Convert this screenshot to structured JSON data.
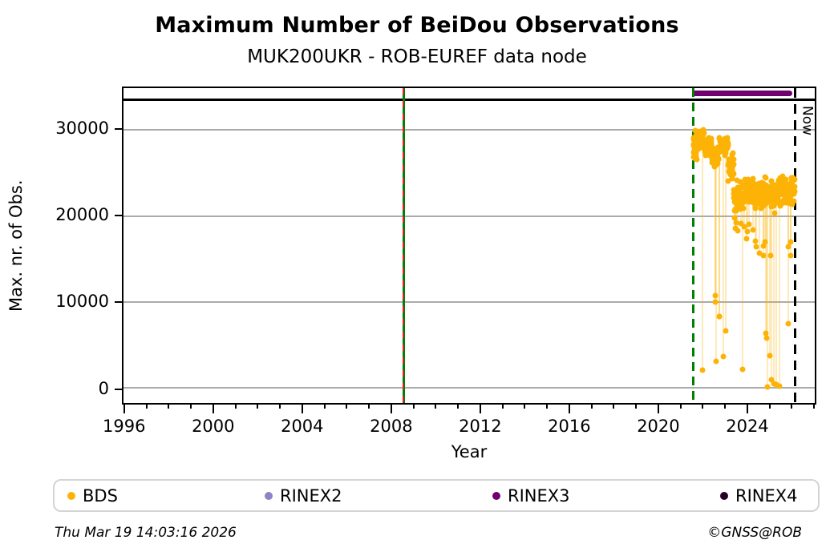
{
  "chart_data": {
    "type": "scatter",
    "title": "Maximum Number of BeiDou Observations",
    "subtitle": "MUK200UKR - ROB-EUREF data node",
    "xlabel": "Year",
    "ylabel": "Max. nr. of Obs.",
    "xlim": [
      1995.9,
      2027.1
    ],
    "ylim": [
      -1800,
      34900
    ],
    "xticks_major": [
      1996,
      2000,
      2004,
      2008,
      2012,
      2016,
      2020,
      2024
    ],
    "xticks_minor_step": 1,
    "yticks": [
      0,
      10000,
      20000,
      30000
    ],
    "grid": "horizontal-only",
    "grid_color": "#ababab",
    "series": [
      {
        "name": "BDS",
        "color": "#FCB306",
        "marker": "circle"
      }
    ],
    "band_segments": [
      {
        "x0": 2021.62,
        "x1": 2021.78,
        "lo": 26000,
        "hi": 30300,
        "n": 30
      },
      {
        "x0": 2021.78,
        "x1": 2022.1,
        "lo": 27400,
        "hi": 30400,
        "n": 48
      },
      {
        "x0": 2022.1,
        "x1": 2022.45,
        "lo": 26800,
        "hi": 29300,
        "n": 48
      },
      {
        "x0": 2022.45,
        "x1": 2022.78,
        "lo": 25600,
        "hi": 28300,
        "n": 42
      },
      {
        "x0": 2022.78,
        "x1": 2023.2,
        "lo": 26800,
        "hi": 29600,
        "n": 56
      },
      {
        "x0": 2023.2,
        "x1": 2023.45,
        "lo": 23500,
        "hi": 27500,
        "n": 30
      },
      {
        "x0": 2023.45,
        "x1": 2023.9,
        "lo": 20400,
        "hi": 24300,
        "n": 62
      },
      {
        "x0": 2023.9,
        "x1": 2024.6,
        "lo": 20800,
        "hi": 24800,
        "n": 92
      },
      {
        "x0": 2024.6,
        "x1": 2025.3,
        "lo": 20300,
        "hi": 24600,
        "n": 92
      },
      {
        "x0": 2025.3,
        "x1": 2026.2,
        "lo": 21000,
        "hi": 24900,
        "n": 115
      }
    ],
    "outliers": [
      [
        2022.03,
        2050
      ],
      [
        2022.6,
        10700
      ],
      [
        2022.61,
        10000
      ],
      [
        2022.63,
        3050
      ],
      [
        2022.78,
        8300
      ],
      [
        2022.81,
        8250
      ],
      [
        2022.99,
        3630
      ],
      [
        2023.07,
        6600
      ],
      [
        2023.47,
        19800
      ],
      [
        2023.5,
        18600
      ],
      [
        2023.56,
        19200
      ],
      [
        2023.62,
        18300
      ],
      [
        2023.76,
        19100
      ],
      [
        2023.83,
        2150
      ],
      [
        2023.92,
        18700
      ],
      [
        2024.02,
        17300
      ],
      [
        2024.06,
        18200
      ],
      [
        2024.12,
        19000
      ],
      [
        2024.3,
        18400
      ],
      [
        2024.42,
        17100
      ],
      [
        2024.47,
        16400
      ],
      [
        2024.62,
        15700
      ],
      [
        2024.77,
        16500
      ],
      [
        2024.8,
        15350
      ],
      [
        2024.86,
        17000
      ],
      [
        2024.9,
        6300
      ],
      [
        2024.93,
        5750
      ],
      [
        2024.95,
        90
      ],
      [
        2025.06,
        3720
      ],
      [
        2025.1,
        15350
      ],
      [
        2025.13,
        900
      ],
      [
        2025.27,
        450
      ],
      [
        2025.35,
        370
      ],
      [
        2025.5,
        200
      ],
      [
        2025.9,
        16400
      ],
      [
        2025.92,
        7440
      ],
      [
        2026.0,
        17000
      ],
      [
        2026.02,
        15400
      ]
    ],
    "stems": {
      "threshold": 20000,
      "split_year": 2023.45,
      "top_early": 27500,
      "top_late": 22800,
      "color": "rgba(252,179,6,0.28)"
    },
    "events": [
      {
        "year": 2008.55,
        "style": "green-solid-red-dash",
        "colors": [
          "#008000",
          "#DD2222"
        ]
      },
      {
        "year": 2021.6,
        "style": "green-dash",
        "colors": [
          "#008000"
        ]
      },
      {
        "year": 2026.21,
        "style": "black-dash",
        "colors": [
          "#000000"
        ],
        "label": "Now"
      }
    ],
    "now_label": "Now",
    "availability_bars": [
      {
        "name": "RINEX3",
        "start": 2021.55,
        "end": 2026.1,
        "value": 34250,
        "color": "#700070"
      }
    ],
    "reference_line": {
      "value": 33500,
      "color": "#000000"
    },
    "legend": {
      "items": [
        {
          "label": "BDS",
          "color": "#FCB306"
        },
        {
          "label": "RINEX2",
          "color": "#8B84C5"
        },
        {
          "label": "RINEX3",
          "color": "#700070"
        },
        {
          "label": "RINEX4",
          "color": "#270026"
        }
      ],
      "item_offsets": [
        16,
        262,
        546,
        830
      ]
    }
  },
  "footer": {
    "timestamp": "Thu Mar 19 14:03:16 2026",
    "credit": "©GNSS@ROB"
  }
}
